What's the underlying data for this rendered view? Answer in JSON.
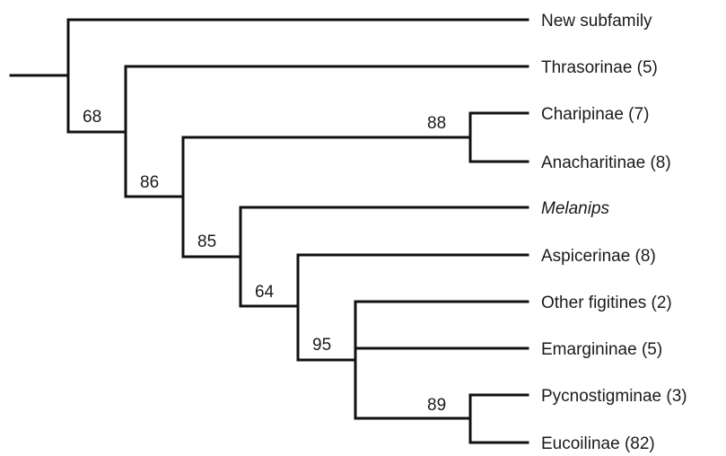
{
  "taxa": [
    {
      "label": "New subfamily",
      "italic": false
    },
    {
      "label": "Thrasorinae (5)",
      "italic": false
    },
    {
      "label": "Charipinae (7)",
      "italic": false
    },
    {
      "label": "Anacharitinae (8)",
      "italic": false
    },
    {
      "label": "Melanips",
      "italic": true
    },
    {
      "label": "Aspicerinae (8)",
      "italic": false
    },
    {
      "label": "Other figitines (2)",
      "italic": false
    },
    {
      "label": "Emargininae (5)",
      "italic": false
    },
    {
      "label": "Pycnostigminae (3)",
      "italic": false
    },
    {
      "label": "Eucoilinae (82)",
      "italic": false
    }
  ],
  "support_values": {
    "root_node": "68",
    "node_thrasorinae_split": "86",
    "node_charipinae_anacharitinae": "88",
    "node_melanips_split": "85",
    "node_aspicerinae_split": "64",
    "node_figitines_group": "95",
    "node_pycnostigminae_eucoilinae": "89"
  }
}
